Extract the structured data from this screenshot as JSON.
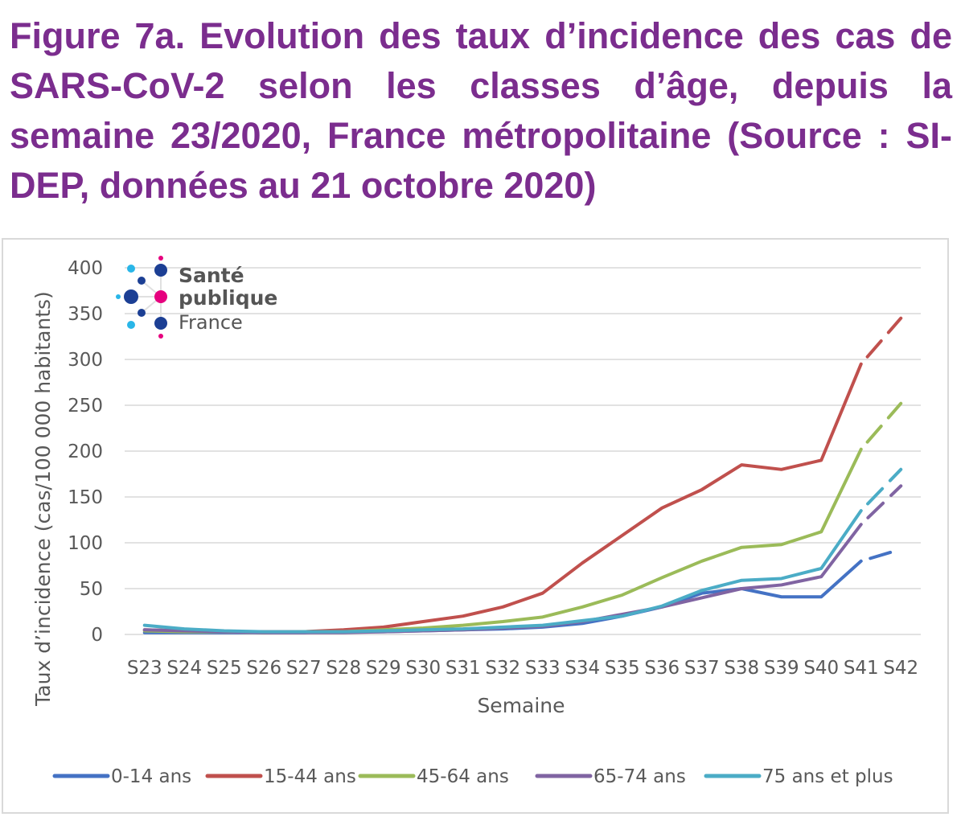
{
  "figure_title": "Figure 7a. Evolution des taux d’incidence des cas de SARS-CoV-2 selon les classes d’âge, depuis la semaine 23/2020, France métropolitaine (Source : SI-DEP, données au 21 octobre 2020)",
  "logo": {
    "line1": "Santé",
    "line2": "publique",
    "line3": "France"
  },
  "chart_data": {
    "type": "line",
    "title": "",
    "xlabel": "Semaine",
    "ylabel": "Taux d’incidence (cas/100 000 habitants)",
    "ylim": [
      0,
      400
    ],
    "yticks": [
      0,
      50,
      100,
      150,
      200,
      250,
      300,
      350,
      400
    ],
    "grid": true,
    "legend_position": "bottom",
    "categories": [
      "S23",
      "S24",
      "S25",
      "S26",
      "S27",
      "S28",
      "S29",
      "S30",
      "S31",
      "S32",
      "S33",
      "S34",
      "S35",
      "S36",
      "S37",
      "S38",
      "S39",
      "S40",
      "S41",
      "S42"
    ],
    "series": [
      {
        "name": "0-14 ans",
        "color": "#4472c4",
        "values": [
          2,
          2,
          2,
          2,
          2,
          3,
          3,
          4,
          5,
          6,
          8,
          12,
          20,
          30,
          45,
          50,
          41,
          41,
          80,
          93
        ]
      },
      {
        "name": "15-44 ans",
        "color": "#c0504d",
        "values": [
          5,
          4,
          3,
          3,
          3,
          5,
          8,
          14,
          20,
          30,
          45,
          78,
          108,
          138,
          158,
          185,
          180,
          190,
          295,
          345
        ]
      },
      {
        "name": "45-64 ans",
        "color": "#9bbb59",
        "values": [
          4,
          3,
          3,
          2,
          3,
          3,
          5,
          7,
          10,
          14,
          19,
          30,
          43,
          62,
          80,
          95,
          98,
          112,
          202,
          252
        ]
      },
      {
        "name": "65-74 ans",
        "color": "#8064a2",
        "values": [
          5,
          4,
          3,
          2,
          2,
          2,
          3,
          4,
          5,
          7,
          9,
          14,
          22,
          30,
          40,
          50,
          54,
          63,
          120,
          162
        ]
      },
      {
        "name": "75 ans et plus",
        "color": "#4bacc6",
        "values": [
          10,
          6,
          4,
          3,
          3,
          3,
          4,
          5,
          6,
          8,
          10,
          15,
          20,
          31,
          48,
          59,
          61,
          72,
          135,
          180
        ]
      }
    ],
    "note": "Last segment (S41 to S42) drawn dashed (provisional data)"
  }
}
